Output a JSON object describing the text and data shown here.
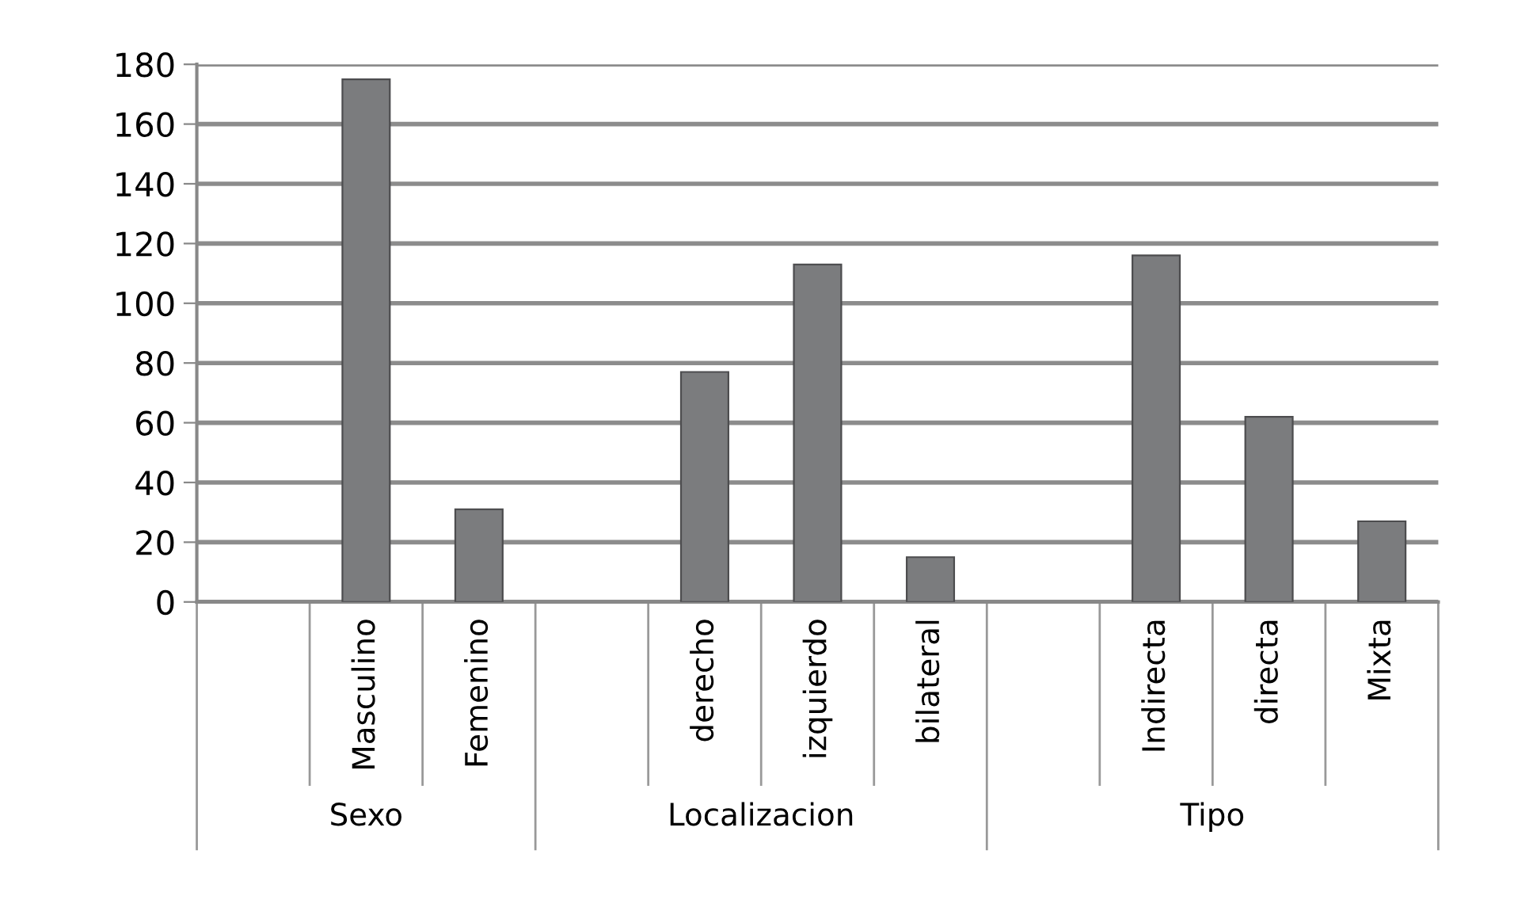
{
  "chart_data": {
    "type": "bar",
    "categories": [
      null,
      "Masculino",
      "Femenino",
      null,
      "derecho",
      "izquierdo",
      "bilateral",
      null,
      "Indirecta",
      "directa",
      "Mixta"
    ],
    "values": [
      null,
      175,
      31,
      null,
      77,
      113,
      15,
      null,
      116,
      62,
      27
    ],
    "color": "#7b7c7e",
    "ylim": [
      0,
      180
    ],
    "yticks": [
      0,
      20,
      40,
      60,
      80,
      100,
      120,
      140,
      160,
      180
    ],
    "grid": "y",
    "annotations": [
      "Sexo",
      "Localizacion",
      "Tipo"
    ]
  }
}
